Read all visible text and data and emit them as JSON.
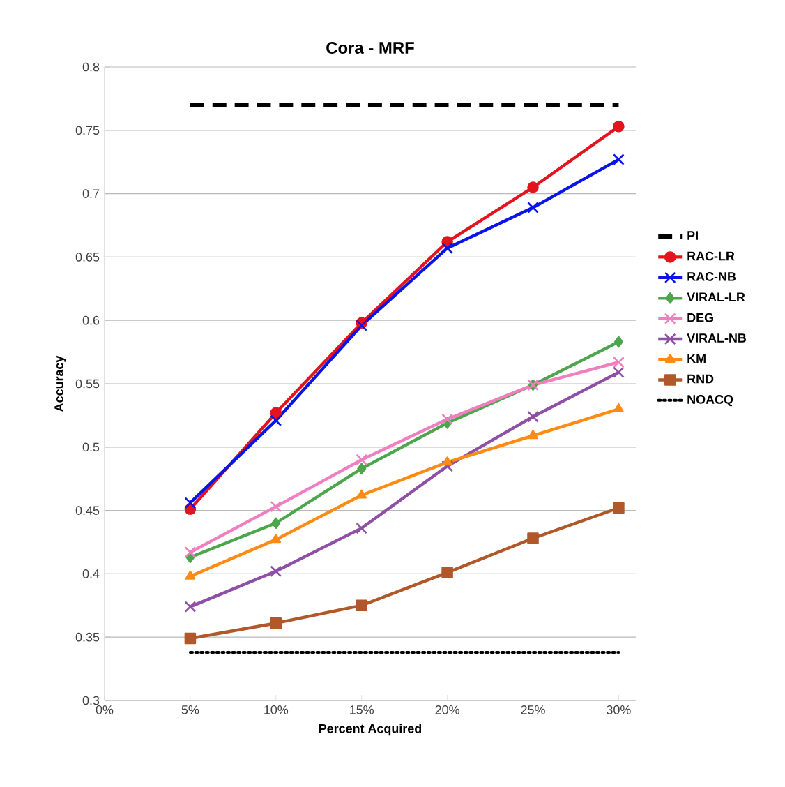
{
  "chart_data": {
    "type": "line",
    "title": "Cora - MRF",
    "xlabel": "Percent Acquired",
    "ylabel": "Accuracy",
    "categories": [
      "0%",
      "5%",
      "10%",
      "15%",
      "20%",
      "25%",
      "30%"
    ],
    "ylim": [
      0.3,
      0.8
    ],
    "yticks": [
      0.3,
      0.35,
      0.4,
      0.45,
      0.5,
      0.55,
      0.6,
      0.65,
      0.7,
      0.75,
      0.8
    ],
    "grid": "y",
    "legend": "right",
    "series": [
      {
        "name": "PI",
        "color": "#000000",
        "marker": "none",
        "line_style": "dashed",
        "values": [
          null,
          0.77,
          0.77,
          0.77,
          0.77,
          0.77,
          0.77
        ]
      },
      {
        "name": "RAC-LR",
        "color": "#e3141e",
        "marker": "circle",
        "values": [
          null,
          0.451,
          0.527,
          0.598,
          0.662,
          0.705,
          0.753
        ]
      },
      {
        "name": "RAC-NB",
        "color": "#0a14e6",
        "marker": "cross",
        "values": [
          null,
          0.456,
          0.521,
          0.596,
          0.657,
          0.689,
          0.727
        ]
      },
      {
        "name": "VIRAL-LR",
        "color": "#4ca64c",
        "marker": "diamond",
        "values": [
          null,
          0.413,
          0.44,
          0.483,
          0.519,
          0.549,
          0.583
        ]
      },
      {
        "name": "DEG",
        "color": "#f07fc0",
        "marker": "cross",
        "values": [
          null,
          0.417,
          0.453,
          0.49,
          0.522,
          0.549,
          0.567
        ]
      },
      {
        "name": "VIRAL-NB",
        "color": "#8e4fa5",
        "marker": "cross",
        "values": [
          null,
          0.374,
          0.402,
          0.436,
          0.485,
          0.524,
          0.559
        ]
      },
      {
        "name": "KM",
        "color": "#ff8a14",
        "marker": "triangle",
        "values": [
          null,
          0.398,
          0.427,
          0.462,
          0.488,
          0.509,
          0.53
        ]
      },
      {
        "name": "RND",
        "color": "#b0582a",
        "marker": "square",
        "values": [
          null,
          0.349,
          0.361,
          0.375,
          0.401,
          0.428,
          0.452
        ]
      },
      {
        "name": "NOACQ",
        "color": "#000000",
        "marker": "none",
        "line_style": "dotted",
        "values": [
          null,
          0.338,
          0.338,
          0.338,
          0.338,
          0.338,
          0.338
        ]
      }
    ]
  }
}
